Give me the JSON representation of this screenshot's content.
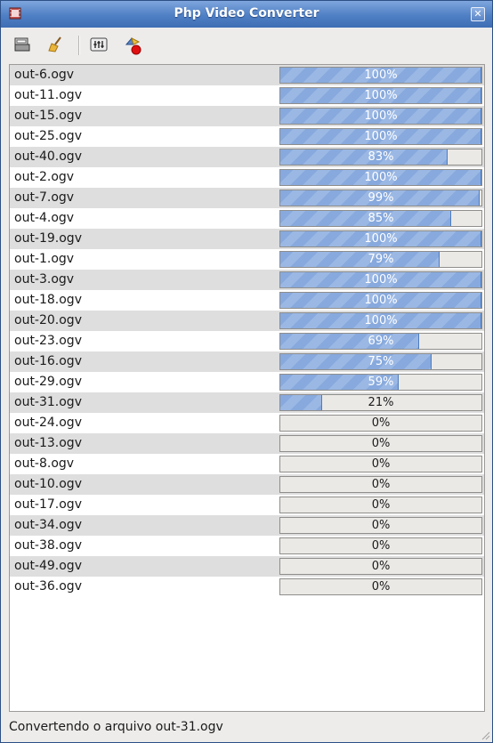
{
  "window": {
    "title": "Php Video Converter"
  },
  "toolbar": {
    "buttons": [
      {
        "icon": "open-folder-icon"
      },
      {
        "icon": "clear-broom-icon"
      },
      {
        "icon": "settings-icon"
      },
      {
        "icon": "convert-record-icon"
      }
    ]
  },
  "files": [
    {
      "name": "out-6.ogv",
      "progress": 100,
      "label": "100%"
    },
    {
      "name": "out-11.ogv",
      "progress": 100,
      "label": "100%"
    },
    {
      "name": "out-15.ogv",
      "progress": 100,
      "label": "100%"
    },
    {
      "name": "out-25.ogv",
      "progress": 100,
      "label": "100%"
    },
    {
      "name": "out-40.ogv",
      "progress": 83,
      "label": "83%"
    },
    {
      "name": "out-2.ogv",
      "progress": 100,
      "label": "100%"
    },
    {
      "name": "out-7.ogv",
      "progress": 99,
      "label": "99%"
    },
    {
      "name": "out-4.ogv",
      "progress": 85,
      "label": "85%"
    },
    {
      "name": "out-19.ogv",
      "progress": 100,
      "label": "100%"
    },
    {
      "name": "out-1.ogv",
      "progress": 79,
      "label": "79%"
    },
    {
      "name": "out-3.ogv",
      "progress": 100,
      "label": "100%"
    },
    {
      "name": "out-18.ogv",
      "progress": 100,
      "label": "100%"
    },
    {
      "name": "out-20.ogv",
      "progress": 100,
      "label": "100%"
    },
    {
      "name": "out-23.ogv",
      "progress": 69,
      "label": "69%"
    },
    {
      "name": "out-16.ogv",
      "progress": 75,
      "label": "75%"
    },
    {
      "name": "out-29.ogv",
      "progress": 59,
      "label": "59%"
    },
    {
      "name": "out-31.ogv",
      "progress": 21,
      "label": "21%"
    },
    {
      "name": "out-24.ogv",
      "progress": 0,
      "label": "0%"
    },
    {
      "name": "out-13.ogv",
      "progress": 0,
      "label": "0%"
    },
    {
      "name": "out-8.ogv",
      "progress": 0,
      "label": "0%"
    },
    {
      "name": "out-10.ogv",
      "progress": 0,
      "label": "0%"
    },
    {
      "name": "out-17.ogv",
      "progress": 0,
      "label": "0%"
    },
    {
      "name": "out-34.ogv",
      "progress": 0,
      "label": "0%"
    },
    {
      "name": "out-38.ogv",
      "progress": 0,
      "label": "0%"
    },
    {
      "name": "out-49.ogv",
      "progress": 0,
      "label": "0%"
    },
    {
      "name": "out-36.ogv",
      "progress": 0,
      "label": "0%"
    }
  ],
  "status": {
    "text": "Convertendo o arquivo out-31.ogv"
  },
  "colors": {
    "title_bar": "#4f7fc4",
    "progress_fill": "#87a9dd",
    "row_alt": "#dedede"
  }
}
